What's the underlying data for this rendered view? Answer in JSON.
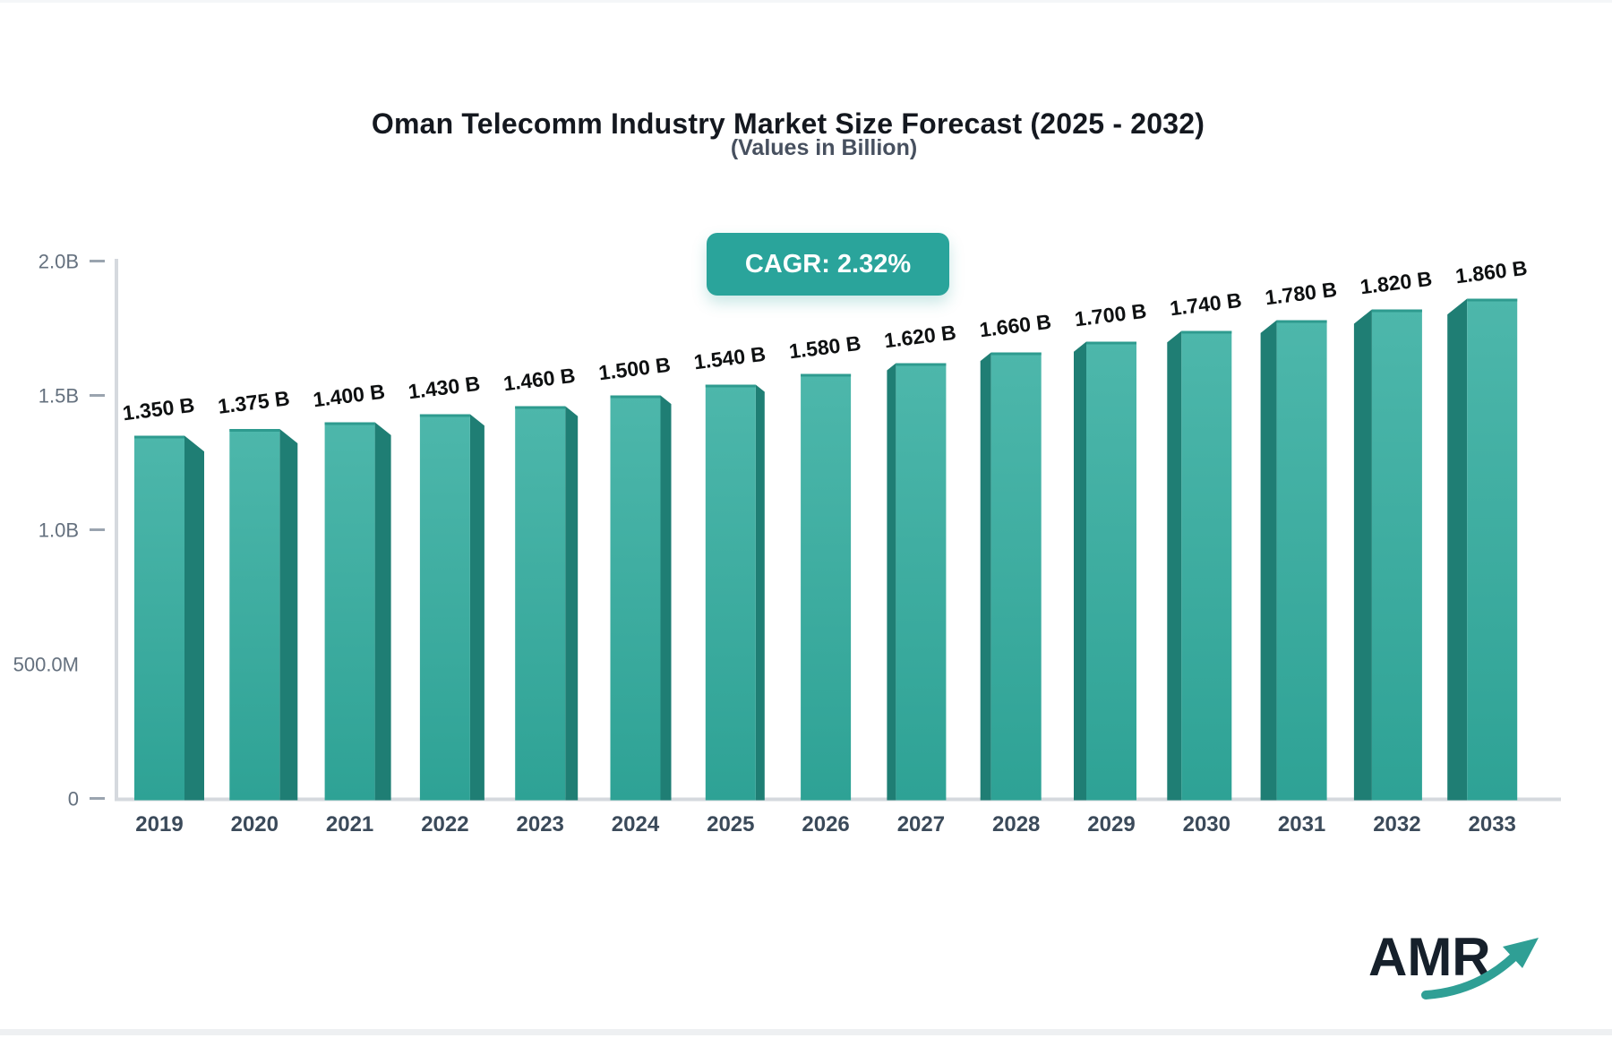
{
  "title": "Oman Telecomm Industry Market Size Forecast (2025 - 2032)",
  "subtitle": "(Values in Billion)",
  "badge": {
    "label": "CAGR: 2.32%",
    "bg_color": "#2aa49b",
    "text_color": "#ffffff"
  },
  "watermark": {
    "text": "AMR",
    "arrow_icon": "growth-arrow-icon",
    "arrow_color": "#2f9f95",
    "text_color": "#16202b"
  },
  "colors": {
    "bar_front_top": "#4db7ab",
    "bar_front_bottom": "#2ea295",
    "bar_top_edge": "#2e9b8f",
    "bar_side": "#1f7e74",
    "axis_line": "#d5d9de",
    "tick_dash": "#9aa4af",
    "tick_text": "#64707e",
    "year_text": "#3b4a5a",
    "value_text": "#0e1011"
  },
  "chart_data": {
    "type": "bar",
    "title": "Oman Telecomm Industry Market Size Forecast (2025 - 2032)",
    "subtitle": "(Values in Billion)",
    "xlabel": "",
    "ylabel": "",
    "ylim": [
      0,
      2.0
    ],
    "grid": false,
    "legend": false,
    "categories": [
      "2019",
      "2020",
      "2021",
      "2022",
      "2023",
      "2024",
      "2025",
      "2026",
      "2027",
      "2028",
      "2029",
      "2030",
      "2031",
      "2032",
      "2033"
    ],
    "values": [
      1.35,
      1.375,
      1.4,
      1.43,
      1.46,
      1.5,
      1.54,
      1.58,
      1.62,
      1.66,
      1.7,
      1.74,
      1.78,
      1.82,
      1.86
    ],
    "value_labels": [
      "1.350 B",
      "1.375 B",
      "1.400 B",
      "1.430 B",
      "1.460 B",
      "1.500 B",
      "1.540 B",
      "1.580 B",
      "1.620 B",
      "1.660 B",
      "1.700 B",
      "1.740 B",
      "1.780 B",
      "1.820 B",
      "1.860 B"
    ],
    "yticks": [
      {
        "value": 2.0,
        "label": "2.0B",
        "dash": true
      },
      {
        "value": 1.5,
        "label": "1.5B",
        "dash": true
      },
      {
        "value": 1.0,
        "label": "1.0B",
        "dash": true
      },
      {
        "value": 0.5,
        "label": "500.0M",
        "dash": false
      },
      {
        "value": 0.0,
        "label": "0",
        "dash": true
      }
    ]
  }
}
